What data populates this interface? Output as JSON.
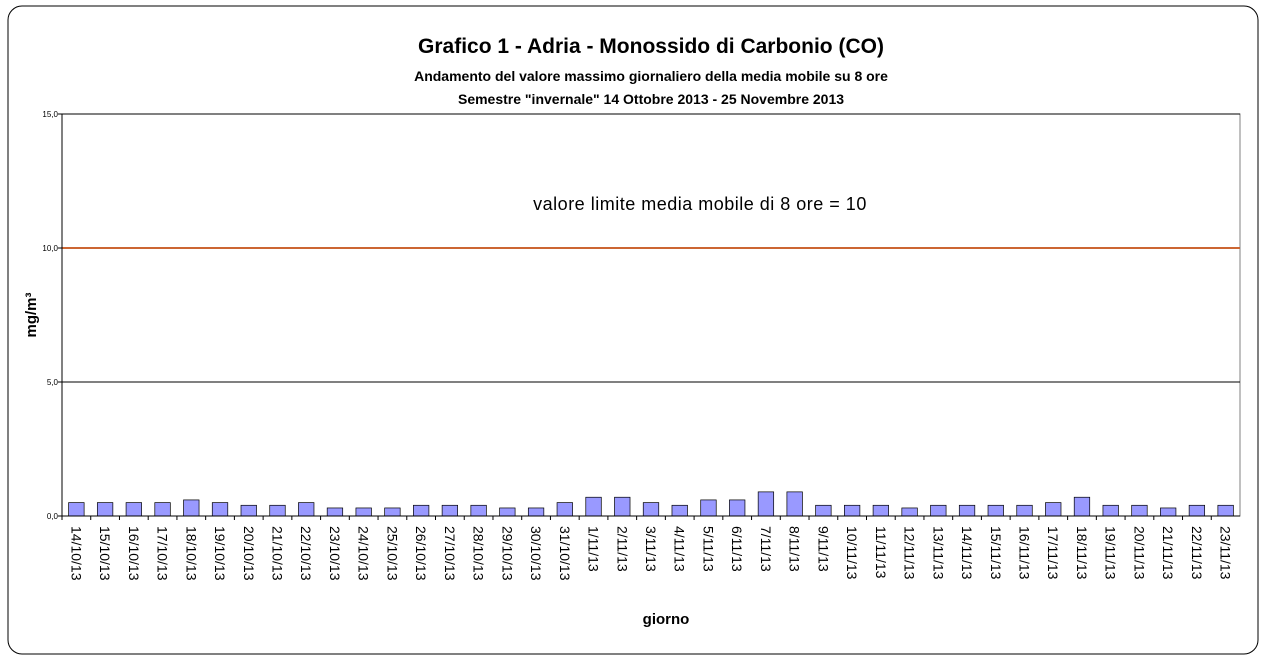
{
  "chart_data": {
    "type": "bar",
    "title": "Grafico 1 - Adria - Monossido di Carbonio (CO)",
    "subtitle": "Andamento del valore massimo giornaliero della media mobile su 8 ore",
    "subtitle2": "Semestre \"invernale\" 14 Ottobre 2013 - 25 Novembre 2013",
    "x_label": "giorno",
    "y_label": "mg/m³",
    "categories": [
      "14/10/13",
      "15/10/13",
      "16/10/13",
      "17/10/13",
      "18/10/13",
      "19/10/13",
      "20/10/13",
      "21/10/13",
      "22/10/13",
      "23/10/13",
      "24/10/13",
      "25/10/13",
      "26/10/13",
      "27/10/13",
      "28/10/13",
      "29/10/13",
      "30/10/13",
      "31/10/13",
      "1/11/13",
      "2/11/13",
      "3/11/13",
      "4/11/13",
      "5/11/13",
      "6/11/13",
      "7/11/13",
      "8/11/13",
      "9/11/13",
      "10/11/13",
      "11/11/13",
      "12/11/13",
      "13/11/13",
      "14/11/13",
      "15/11/13",
      "16/11/13",
      "17/11/13",
      "18/11/13",
      "19/11/13",
      "20/11/13",
      "21/11/13",
      "22/11/13",
      "23/11/13"
    ],
    "values": [
      0.5,
      0.5,
      0.5,
      0.5,
      0.6,
      0.5,
      0.4,
      0.4,
      0.5,
      0.3,
      0.3,
      0.3,
      0.4,
      0.4,
      0.4,
      0.3,
      0.3,
      0.5,
      0.7,
      0.7,
      0.5,
      0.4,
      0.6,
      0.6,
      0.9,
      0.9,
      0.4,
      0.4,
      0.4,
      0.3,
      0.4,
      0.4,
      0.4,
      0.4,
      0.5,
      0.7,
      0.4,
      0.4,
      0.3,
      0.4,
      0.4
    ],
    "color": "#9999ff",
    "ylim": [
      0,
      15
    ],
    "yticks": [
      {
        "value": 0,
        "label": "0,0"
      },
      {
        "value": 5,
        "label": "5,0"
      },
      {
        "value": 10,
        "label": "10,0"
      },
      {
        "value": 15,
        "label": "15,0"
      }
    ],
    "grid": true,
    "limit": {
      "value": 10,
      "label": "valore limite media mobile di 8 ore = 10",
      "color": "#cc6633"
    }
  }
}
